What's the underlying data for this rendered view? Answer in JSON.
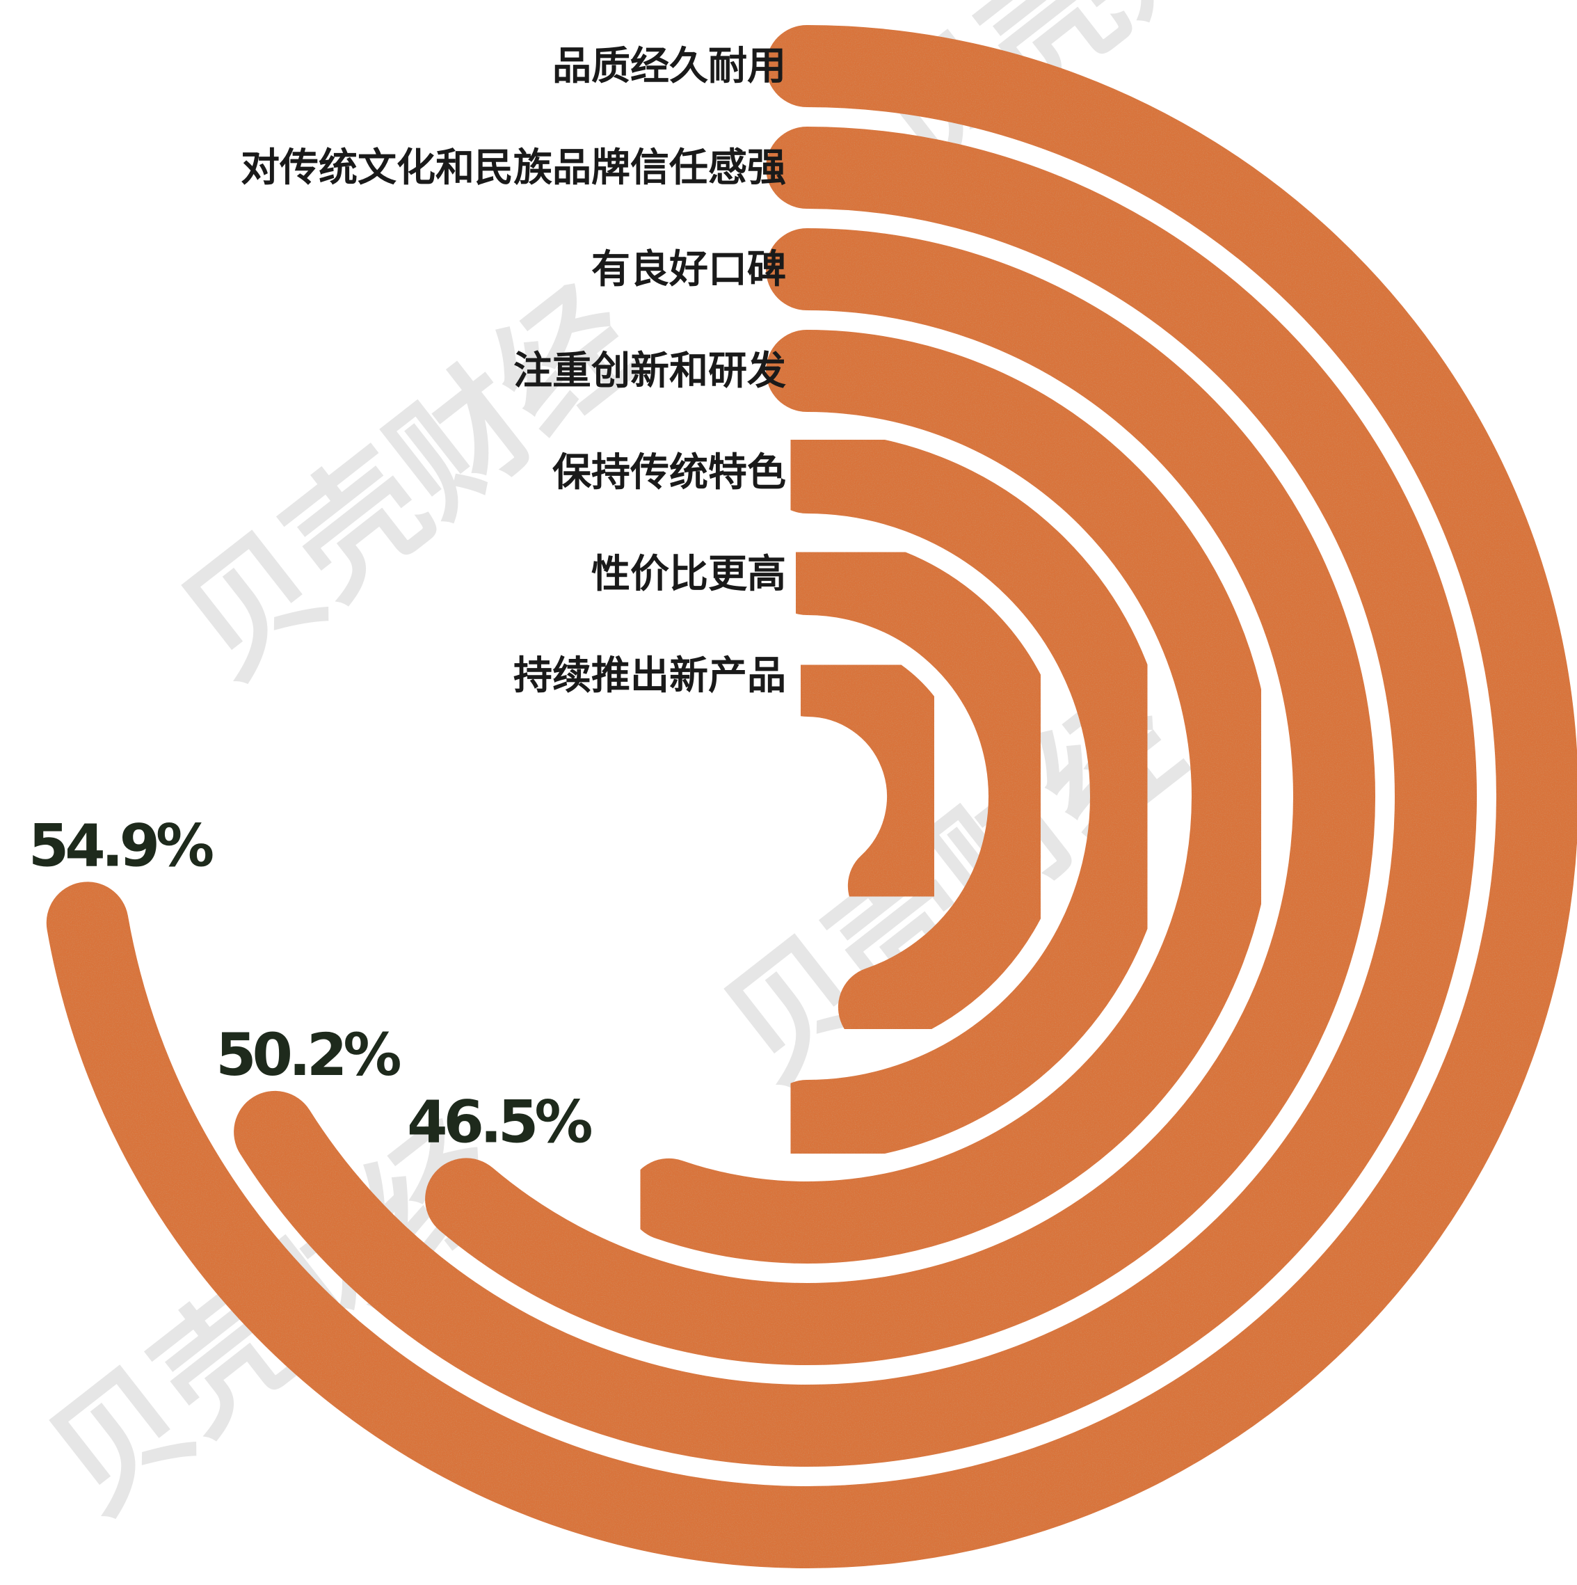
{
  "chart_data": {
    "type": "radial_bar",
    "title": "",
    "categories": [
      "品质经久耐用",
      "对传统文化和民族品牌信任感强",
      "有良好口碑",
      "注重创新和研发",
      "保持传统特色",
      "性价比更高",
      "持续推出新产品"
    ],
    "values": [
      54.9,
      50.2,
      46.5,
      null,
      null,
      null,
      null
    ],
    "value_labels": [
      "54.9%",
      "50.2%",
      "46.5%",
      "",
      "",
      "",
      ""
    ],
    "unit": "%",
    "value_max": 76,
    "estimated_values_unlabeled": [
      null,
      null,
      null,
      42,
      38,
      34,
      29
    ],
    "grid": false,
    "legend": "none"
  },
  "watermark": {
    "text": "贝壳财经"
  },
  "colors": {
    "bar": "#d9733b",
    "bar_speckle": "#b8552a",
    "background": "#ffffff",
    "category_text": "#1a1a1a",
    "value_text": "#1e2a1c"
  }
}
